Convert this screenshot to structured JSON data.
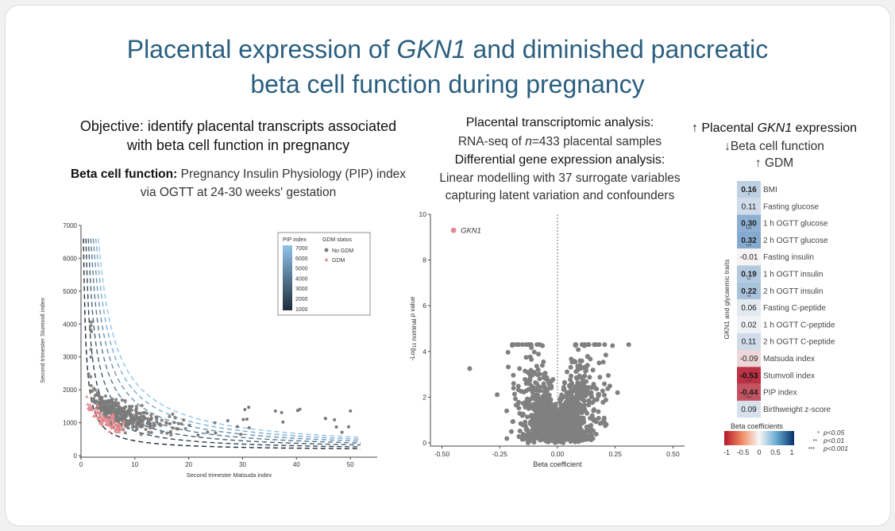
{
  "title": {
    "line1_pre": "Placental expression of ",
    "line1_gene": "GKN1",
    "line1_post": " and diminished pancreatic",
    "line2": "beta cell function during pregnancy"
  },
  "left": {
    "objective_line1": "Objective: identify placental transcripts associated",
    "objective_line2": "with beta cell function in pregnancy",
    "bcf_label": "Beta cell function:",
    "bcf_text1": " Pregnancy Insulin Physiology (PIP) index",
    "bcf_text2": "via OGTT at 24-30 weeks' gestation"
  },
  "middle": {
    "head1": "Placental transcriptomic analysis:",
    "rnaseq_pre": "RNA-seq of ",
    "rnaseq_n": "n",
    "rnaseq_post": "=433 placental samples",
    "head2": "Differential gene expression analysis:",
    "lm1": "Linear modelling with 37 surrogate variables",
    "lm2": "capturing latent variation and confounders"
  },
  "right": {
    "line1_pre": "↑ Placental ",
    "line1_gene": "GKN1",
    "line1_post": " expression",
    "line2": "↓Beta cell function",
    "line3": "↑ GDM"
  },
  "chart_data": [
    {
      "type": "scatter",
      "xlabel": "Second trimester Matsuda index",
      "ylabel": "Second trimester Stumvoll index",
      "xlim": [
        0,
        55
      ],
      "ylim": [
        0,
        7000
      ],
      "x_ticks": [
        0,
        10,
        20,
        30,
        40,
        50
      ],
      "y_ticks": [
        0,
        1000,
        2000,
        3000,
        4000,
        5000,
        6000,
        7000
      ],
      "legend_pip_title": "PIP index",
      "legend_pip_values": [
        "7000",
        "6000",
        "5000",
        "4000",
        "3000",
        "2000",
        "1000"
      ],
      "legend_gdm_title": "GDM status",
      "legend_gdm_items": [
        "No GDM",
        "GDM"
      ],
      "pip_curves": [
        1000,
        2000,
        3000,
        4000,
        5000,
        6000,
        7000
      ],
      "colors": {
        "no_gdm": "#7a7a7a",
        "gdm": "#e58a8f",
        "pip_high": "#8ec4ec",
        "pip_low": "#1d2b3a"
      }
    },
    {
      "type": "scatter",
      "xlabel": "Beta coefficient",
      "ylabel_pre": "-Log",
      "ylabel_sub": "10",
      "ylabel_mid": " nominal ",
      "ylabel_p": "p",
      "ylabel_post": " value",
      "xlim": [
        -0.55,
        0.55
      ],
      "ylim": [
        0,
        10
      ],
      "x_ticks": [
        "-0.50",
        "-0.25",
        "0.00",
        "0.25",
        "0.50"
      ],
      "y_ticks": [
        0,
        2,
        4,
        6,
        8,
        10
      ],
      "highlight": {
        "label": "GKN1",
        "x": -0.45,
        "y": 9.3
      },
      "colors": {
        "points": "#808080",
        "highlight": "#e58a8f"
      }
    },
    {
      "type": "heatmap",
      "ylabel": "GKN1 and glycaemic traits",
      "rows": [
        {
          "trait": "BMI",
          "value": "0.16",
          "stars": "*"
        },
        {
          "trait": "Fasting glucose",
          "value": "0.11",
          "stars": ""
        },
        {
          "trait": "1 h OGTT glucose",
          "value": "0.30",
          "stars": "***"
        },
        {
          "trait": "2 h OGTT glucose",
          "value": "0.32",
          "stars": "***"
        },
        {
          "trait": "Fasting insulin",
          "value": "-0.01",
          "stars": ""
        },
        {
          "trait": "1 h OGTT insulin",
          "value": "0.19",
          "stars": "**"
        },
        {
          "trait": "2 h OGTT insulin",
          "value": "0.22",
          "stars": "**"
        },
        {
          "trait": "Fasting C-peptide",
          "value": "0.06",
          "stars": ""
        },
        {
          "trait": "1 h OGTT C-peptide",
          "value": "0.02",
          "stars": ""
        },
        {
          "trait": "2 h OGTT C-peptide",
          "value": "0.11",
          "stars": ""
        },
        {
          "trait": "Matsuda index",
          "value": "-0.09",
          "stars": ""
        },
        {
          "trait": "Stumvoll index",
          "value": "-0.53",
          "stars": "***"
        },
        {
          "trait": "PIP index",
          "value": "-0.44",
          "stars": "***"
        },
        {
          "trait": "Birthweight z-score",
          "value": "0.09",
          "stars": ""
        }
      ],
      "colorbar_title": "Beta coefficients",
      "colorbar_ticks": [
        "-1",
        "-0.5",
        "0",
        "0.5",
        "1"
      ],
      "sig_legend": [
        {
          "stars": "*",
          "text": "p<0.05"
        },
        {
          "stars": "**",
          "text": "p<0.01"
        },
        {
          "stars": "***",
          "text": "p<0.001"
        }
      ],
      "colors": {
        "negative": "#c0533a",
        "zero": "#f7f7f7",
        "positive": "#1f4f86"
      }
    }
  ]
}
